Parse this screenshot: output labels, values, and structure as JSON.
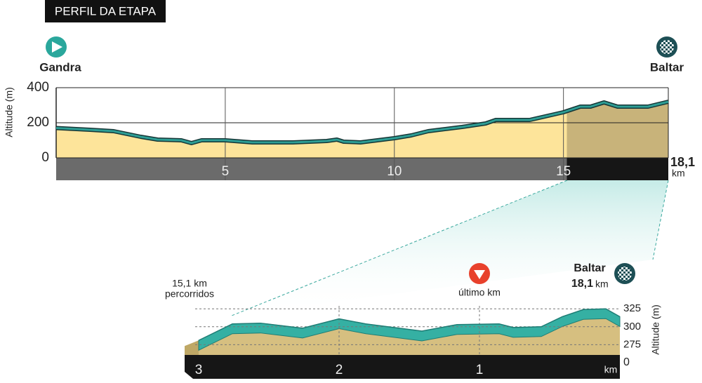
{
  "chart_data": [
    {
      "type": "area",
      "title": "PERFIL DA ETAPA",
      "start_label": "Gandra",
      "finish_label": "Baltar",
      "y_label": "Altitude (m)",
      "end_label": "18,1",
      "end_unit": "km",
      "x": [
        0,
        1,
        1.7,
        2,
        2.5,
        3,
        3.7,
        4,
        4.3,
        5,
        5.8,
        7,
        8,
        8.3,
        8.5,
        9,
        9.5,
        10,
        10.5,
        11,
        12,
        12.7,
        13,
        14,
        15,
        15.5,
        15.8,
        16.2,
        16.6,
        17,
        17.5,
        18.1
      ],
      "values": [
        170,
        160,
        152,
        140,
        120,
        104,
        100,
        84,
        100,
        100,
        88,
        88,
        96,
        104,
        92,
        88,
        100,
        112,
        128,
        152,
        176,
        196,
        216,
        216,
        260,
        292,
        292,
        316,
        292,
        292,
        292,
        320
      ],
      "xlim": [
        0,
        18.1
      ],
      "ylim": [
        0,
        400
      ],
      "xticks": [
        5,
        10,
        15
      ],
      "yticks": [
        0,
        200,
        400
      ],
      "highlight_from": 15.1,
      "fill_color": "#fde49a",
      "highlight_color": "#c8b37a",
      "line_color": "#2e9e95"
    },
    {
      "type": "area3d",
      "start_label": "15,1 km",
      "start_sublabel": "percorridos",
      "marker_label": "último km",
      "last_km_marker": 1,
      "finish_label": "Baltar",
      "finish_distance": "18,1",
      "finish_unit": "km",
      "y_label": "Altitude (m)",
      "x_unit": "km",
      "zero_label": "0",
      "x": [
        3,
        2.76,
        2.56,
        2.26,
        2,
        1.81,
        1.41,
        1.16,
        0.86,
        0.76,
        0.56,
        0.41,
        0.26,
        0.1,
        0
      ],
      "values": [
        281,
        304,
        305,
        298,
        311,
        304,
        294,
        303,
        304,
        299,
        300,
        314,
        324,
        325,
        314
      ],
      "xlim": [
        3,
        0
      ],
      "ylim": [
        250,
        334
      ],
      "xticks": [
        3,
        2,
        1
      ],
      "yticks": [
        275,
        300,
        325
      ],
      "fill_color": "#d6bf80",
      "line_color": "#35b0a3"
    }
  ]
}
